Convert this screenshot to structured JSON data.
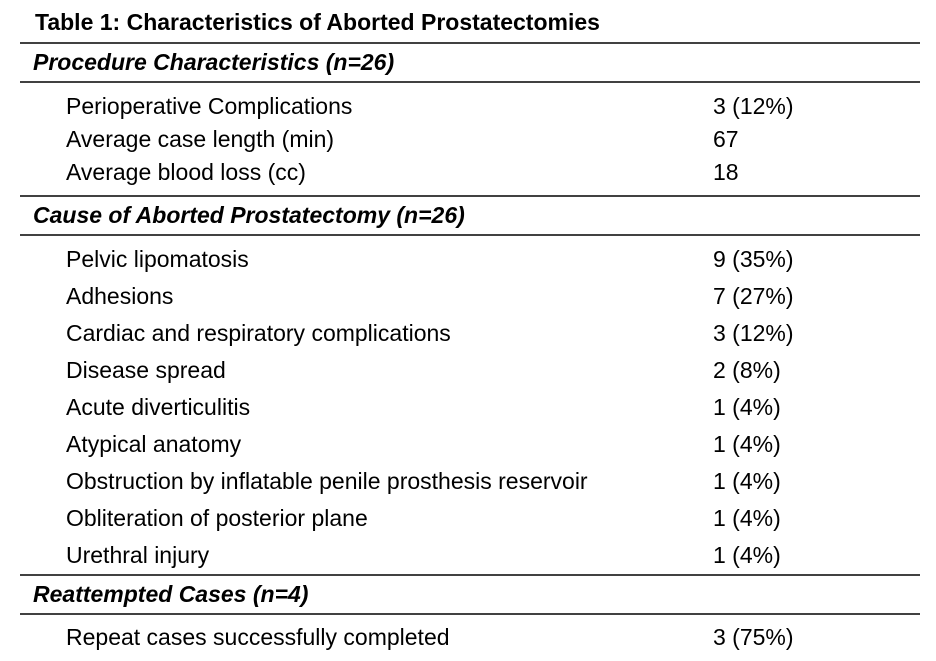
{
  "table": {
    "title": "Table 1: Characteristics of Aborted Prostatectomies",
    "sections": [
      {
        "header": "Procedure Characteristics (n=26)",
        "rows": [
          {
            "label": "Perioperative Complications",
            "value": "3 (12%)"
          },
          {
            "label": "Average case length (min)",
            "value": "67"
          },
          {
            "label": "Average blood loss (cc)",
            "value": "18"
          }
        ]
      },
      {
        "header": "Cause of Aborted Prostatectomy (n=26)",
        "rows": [
          {
            "label": "Pelvic lipomatosis",
            "value": "9 (35%)"
          },
          {
            "label": "Adhesions",
            "value": "7 (27%)"
          },
          {
            "label": "Cardiac and respiratory complications",
            "value": "3 (12%)"
          },
          {
            "label": "Disease spread",
            "value": "2 (8%)"
          },
          {
            "label": "Acute diverticulitis",
            "value": "1 (4%)"
          },
          {
            "label": "Atypical anatomy",
            "value": "1 (4%)"
          },
          {
            "label": "Obstruction by inflatable penile prosthesis reservoir",
            "value": "1 (4%)"
          },
          {
            "label": "Obliteration of posterior plane",
            "value": "1 (4%)"
          },
          {
            "label": "Urethral injury",
            "value": "1 (4%)"
          }
        ]
      },
      {
        "header": "Reattempted Cases (n=4)",
        "rows": [
          {
            "label": "Repeat cases successfully completed",
            "value": "3 (75%)"
          }
        ]
      }
    ]
  },
  "colors": {
    "rule": "#414141",
    "text": "#000000",
    "background": "#ffffff"
  }
}
